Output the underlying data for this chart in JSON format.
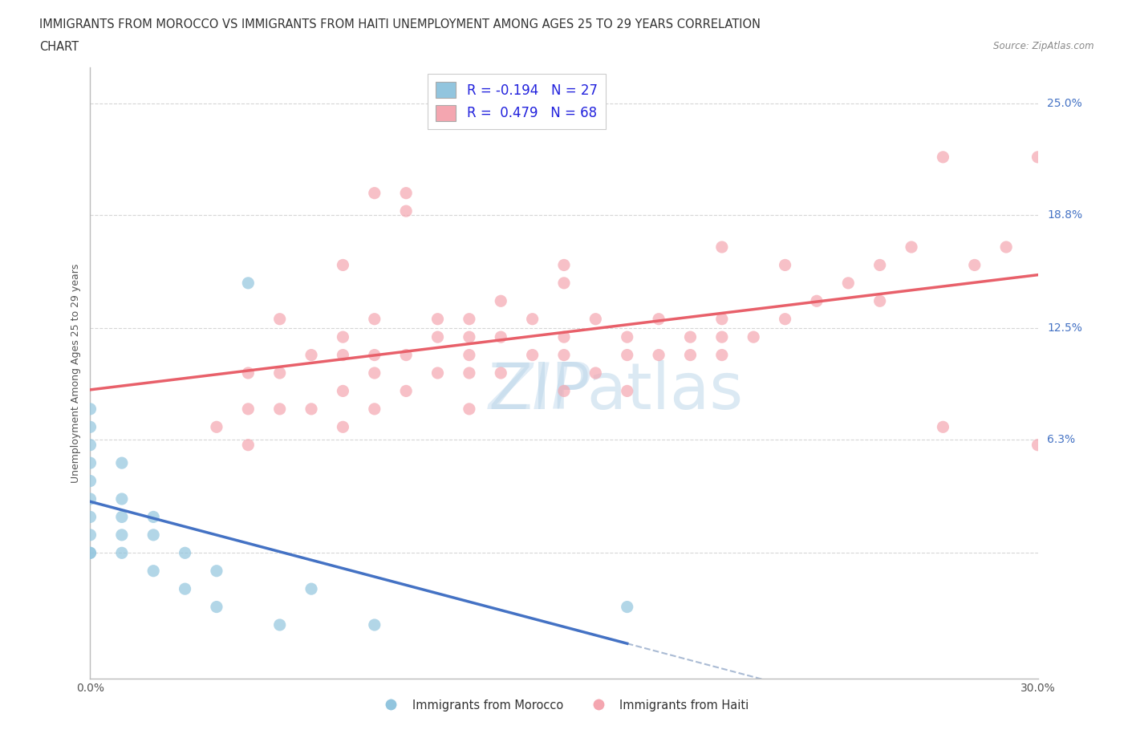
{
  "title_line1": "IMMIGRANTS FROM MOROCCO VS IMMIGRANTS FROM HAITI UNEMPLOYMENT AMONG AGES 25 TO 29 YEARS CORRELATION",
  "title_line2": "CHART",
  "source": "Source: ZipAtlas.com",
  "ylabel": "Unemployment Among Ages 25 to 29 years",
  "xlim": [
    0.0,
    0.3
  ],
  "ylim": [
    -0.07,
    0.27
  ],
  "x_ticks": [
    0.0,
    0.05,
    0.1,
    0.15,
    0.2,
    0.25,
    0.3
  ],
  "y_tick_vals": [
    0.0,
    0.063,
    0.125,
    0.188,
    0.25
  ],
  "y_tick_labels": [
    "",
    "6.3%",
    "12.5%",
    "18.8%",
    "25.0%"
  ],
  "morocco_R": -0.194,
  "morocco_N": 27,
  "haiti_R": 0.479,
  "haiti_N": 68,
  "morocco_color": "#92c5de",
  "haiti_color": "#f4a6b0",
  "morocco_line_color": "#4472c4",
  "haiti_line_color": "#e8606a",
  "dashed_line_color": "#aabbd4",
  "grid_color": "#cccccc",
  "morocco_x": [
    0.0,
    0.0,
    0.0,
    0.0,
    0.0,
    0.0,
    0.0,
    0.0,
    0.0,
    0.0,
    0.01,
    0.01,
    0.01,
    0.01,
    0.01,
    0.02,
    0.02,
    0.02,
    0.03,
    0.03,
    0.04,
    0.04,
    0.05,
    0.06,
    0.07,
    0.09,
    0.17
  ],
  "morocco_y": [
    0.0,
    0.0,
    0.01,
    0.02,
    0.03,
    0.04,
    0.05,
    0.06,
    0.07,
    0.08,
    0.0,
    0.01,
    0.02,
    0.03,
    0.05,
    -0.01,
    0.01,
    0.02,
    -0.02,
    0.0,
    -0.03,
    -0.01,
    0.15,
    -0.04,
    -0.02,
    -0.04,
    -0.03
  ],
  "haiti_x": [
    0.04,
    0.05,
    0.05,
    0.05,
    0.06,
    0.06,
    0.06,
    0.07,
    0.07,
    0.08,
    0.08,
    0.08,
    0.08,
    0.09,
    0.09,
    0.09,
    0.09,
    0.1,
    0.1,
    0.1,
    0.11,
    0.11,
    0.11,
    0.12,
    0.12,
    0.12,
    0.12,
    0.12,
    0.13,
    0.13,
    0.13,
    0.14,
    0.14,
    0.15,
    0.15,
    0.15,
    0.15,
    0.16,
    0.16,
    0.17,
    0.17,
    0.17,
    0.18,
    0.18,
    0.19,
    0.19,
    0.2,
    0.2,
    0.2,
    0.21,
    0.22,
    0.22,
    0.23,
    0.24,
    0.25,
    0.25,
    0.26,
    0.27,
    0.27,
    0.28,
    0.29,
    0.3,
    0.3,
    0.15,
    0.2,
    0.1,
    0.08,
    0.09
  ],
  "haiti_y": [
    0.07,
    0.06,
    0.08,
    0.1,
    0.08,
    0.1,
    0.13,
    0.08,
    0.11,
    0.07,
    0.09,
    0.11,
    0.12,
    0.08,
    0.1,
    0.11,
    0.2,
    0.09,
    0.11,
    0.19,
    0.1,
    0.12,
    0.13,
    0.08,
    0.1,
    0.11,
    0.12,
    0.13,
    0.1,
    0.12,
    0.14,
    0.11,
    0.13,
    0.09,
    0.11,
    0.12,
    0.15,
    0.1,
    0.13,
    0.09,
    0.11,
    0.12,
    0.11,
    0.13,
    0.11,
    0.12,
    0.11,
    0.12,
    0.13,
    0.12,
    0.13,
    0.16,
    0.14,
    0.15,
    0.14,
    0.16,
    0.17,
    0.07,
    0.22,
    0.16,
    0.17,
    0.06,
    0.22,
    0.16,
    0.17,
    0.2,
    0.16,
    0.13
  ]
}
